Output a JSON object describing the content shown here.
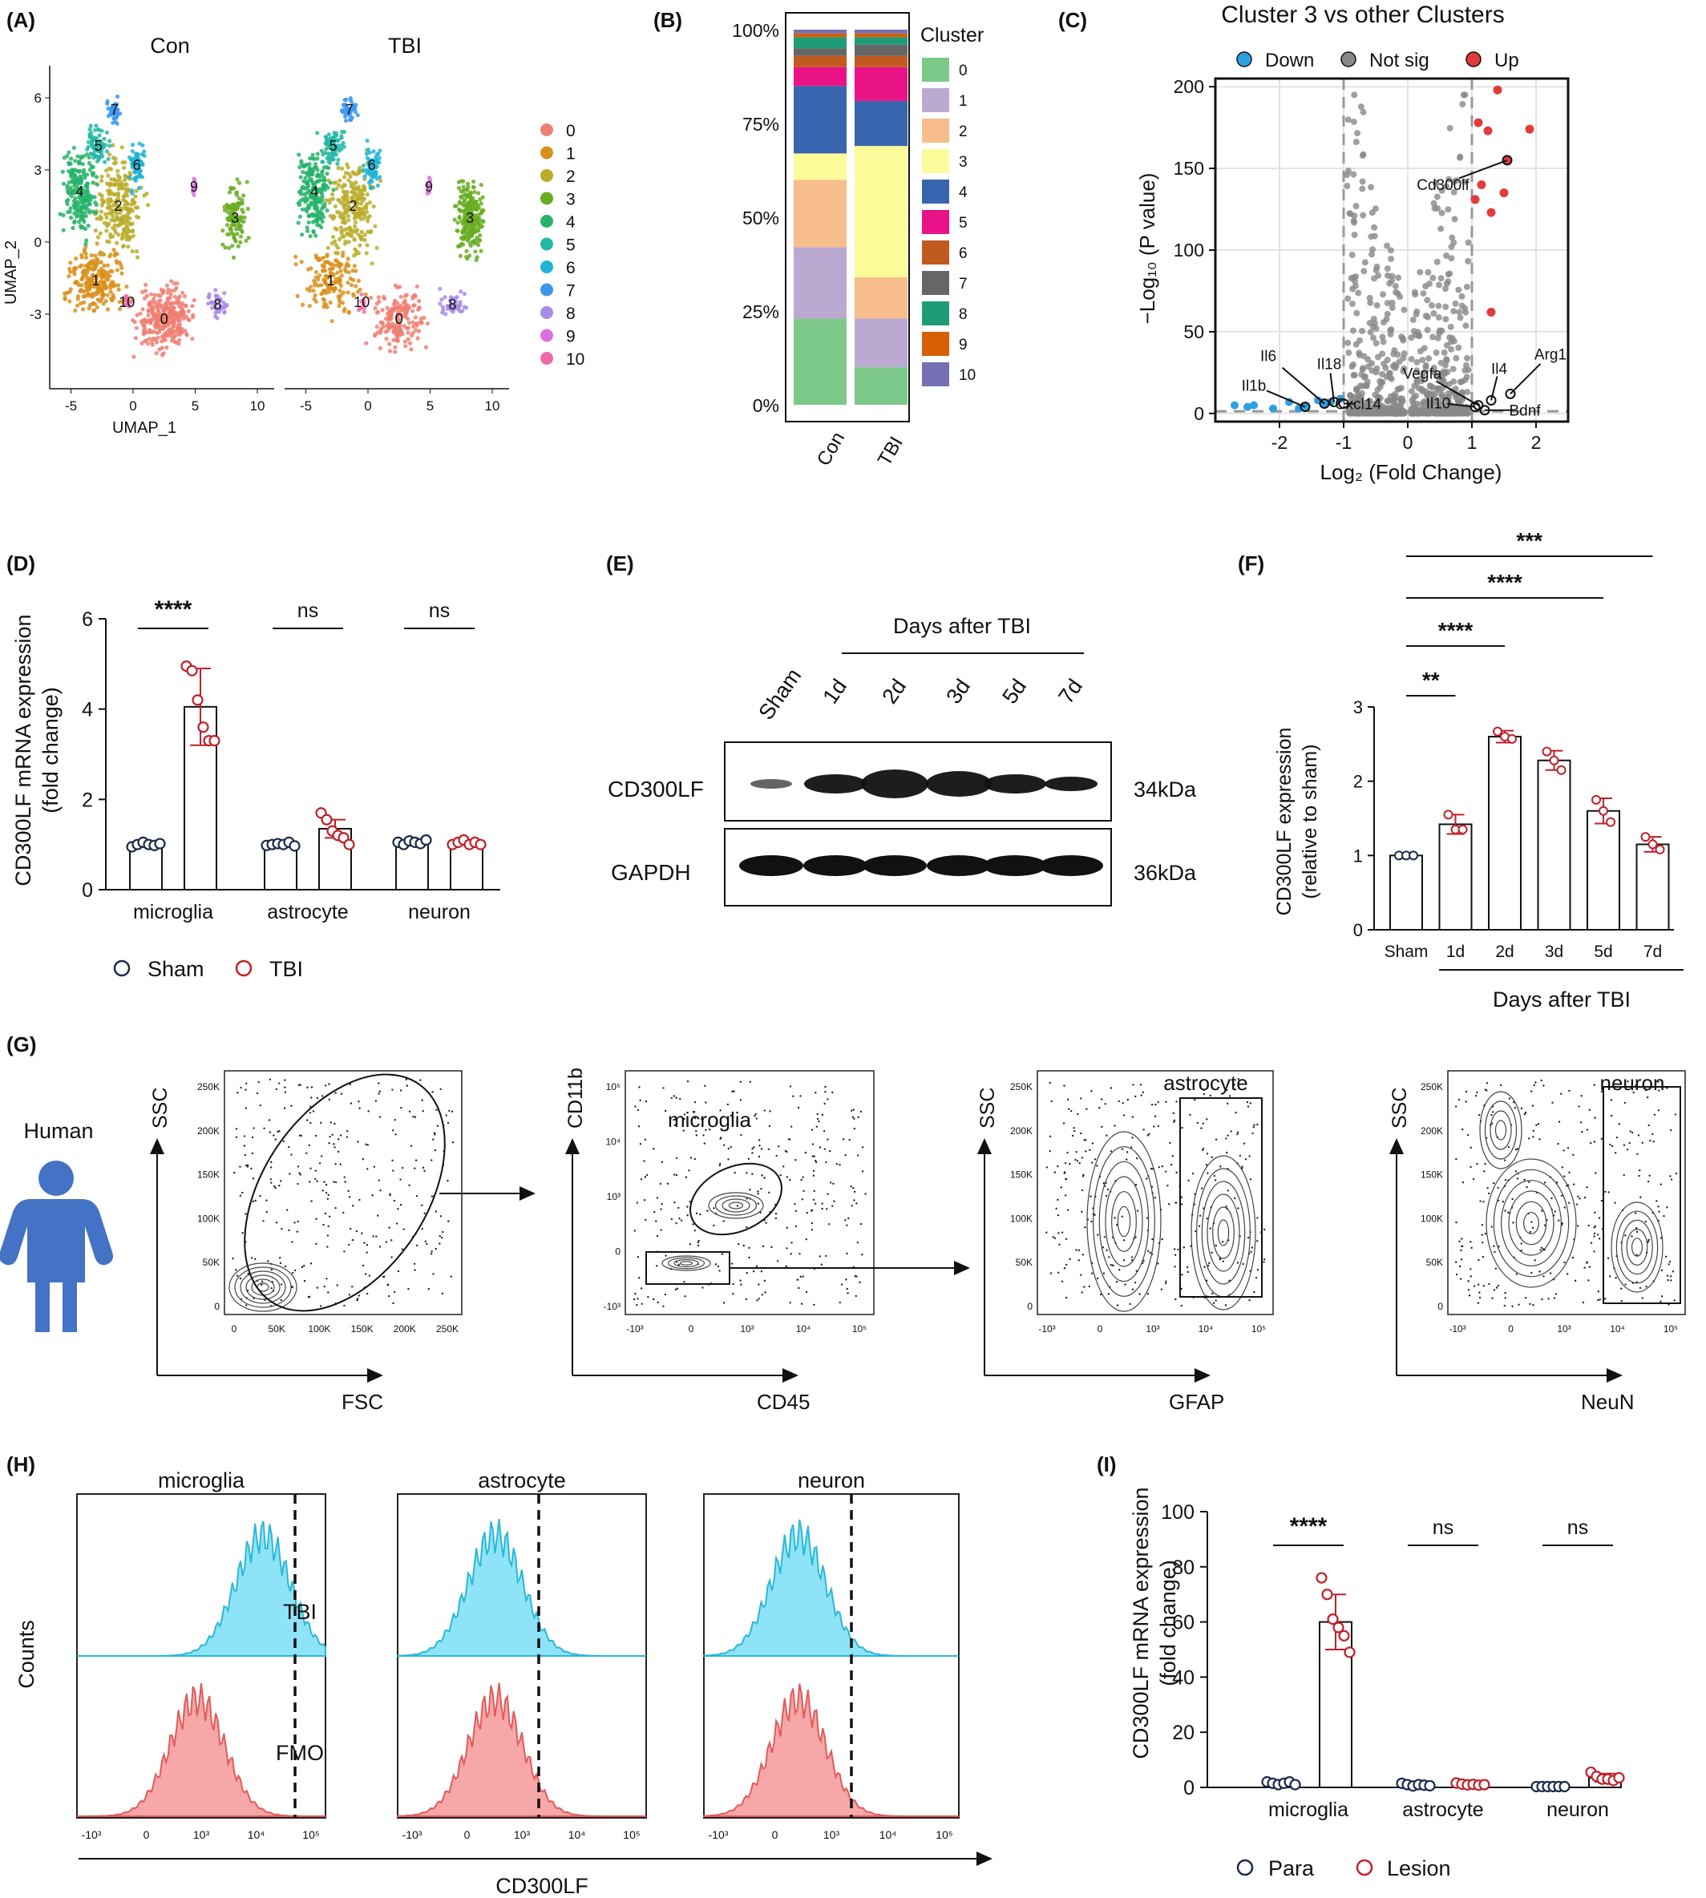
{
  "panels": {
    "A": {
      "label": "(A)",
      "groups": [
        "Con",
        "TBI"
      ],
      "xlabel": "UMAP_1",
      "ylabel": "UMAP_2",
      "xticks": [
        "-5",
        "0",
        "5",
        "10"
      ],
      "yticks": [
        "6",
        "3",
        "0",
        "-3"
      ],
      "clusters": [
        "0",
        "1",
        "2",
        "3",
        "4",
        "5",
        "6",
        "7",
        "8",
        "9",
        "10"
      ],
      "colors": [
        "#f07f73",
        "#d9901c",
        "#b9ad2a",
        "#6aad25",
        "#27b36a",
        "#24b7a4",
        "#1fb4d6",
        "#3d96ee",
        "#a88be8",
        "#dc6fe0",
        "#f06aa8"
      ]
    },
    "B": {
      "label": "(B)",
      "legend_title": "Cluster"
    },
    "C": {
      "label": "(C)",
      "title": "Cluster 3 vs other Clusters",
      "legend": [
        "Down",
        "Not sig",
        "Up"
      ],
      "xlabel": "Log₂ (Fold Change)",
      "ylabel": "−Log₁₀ (P value)",
      "genes": [
        "Cd300lf",
        "Il6",
        "Il18",
        "Il1b",
        "Cxcl14",
        "Vegfa",
        "Il10",
        "Il4",
        "Arg1",
        "Bdnf"
      ]
    },
    "D": {
      "label": "(D)",
      "ylabel": [
        "CD300LF mRNA expression",
        "(fold change)"
      ],
      "sig": [
        "****",
        "ns",
        "ns"
      ],
      "legend": [
        "Sham",
        "TBI"
      ]
    },
    "E": {
      "label": "(E)",
      "header": "Days after TBI",
      "lanes": [
        "Sham",
        "1d",
        "2d",
        "3d",
        "5d",
        "7d"
      ],
      "rows": [
        {
          "name": "CD300LF",
          "size": "34kDa"
        },
        {
          "name": "GAPDH",
          "size": "36kDa"
        }
      ]
    },
    "F": {
      "label": "(F)",
      "ylabel": [
        "CD300LF expression",
        "(relative to sham)"
      ],
      "xlabel": "Days after TBI",
      "sig": [
        "**",
        "****",
        "****",
        "***"
      ]
    },
    "G": {
      "label": "(G)",
      "subject": "Human",
      "plots": [
        {
          "x": "FSC",
          "y": "SSC",
          "gate": ""
        },
        {
          "x": "CD45",
          "y": "CD11b",
          "gate": "microglia"
        },
        {
          "x": "GFAP",
          "y": "SSC",
          "gate": "astrocyte"
        },
        {
          "x": "NeuN",
          "y": "SSC",
          "gate": "neuron"
        }
      ],
      "linear_ticks": [
        "0",
        "50K",
        "100K",
        "150K",
        "200K",
        "250K"
      ]
    },
    "H": {
      "label": "(H)",
      "cells": [
        "microglia",
        "astrocyte",
        "neuron"
      ],
      "conditions": [
        "TBI",
        "FMO"
      ],
      "ylabel": "Counts",
      "xlabel": "CD300LF"
    },
    "I": {
      "label": "(I)",
      "ylabel": [
        "CD300LF mRNA expression",
        "(fold change)"
      ],
      "sig": [
        "****",
        "ns",
        "ns"
      ],
      "legend": [
        "Para",
        "Lesion"
      ]
    }
  },
  "chart_data": [
    {
      "panel": "B",
      "type": "bar",
      "stacked": true,
      "categories": [
        "Con",
        "TBI"
      ],
      "series": [
        {
          "name": "0",
          "values": [
            0.23,
            0.1
          ]
        },
        {
          "name": "1",
          "values": [
            0.19,
            0.13
          ]
        },
        {
          "name": "2",
          "values": [
            0.18,
            0.11
          ]
        },
        {
          "name": "3",
          "values": [
            0.07,
            0.35
          ]
        },
        {
          "name": "4",
          "values": [
            0.18,
            0.12
          ]
        },
        {
          "name": "5",
          "values": [
            0.05,
            0.09
          ]
        },
        {
          "name": "6",
          "values": [
            0.03,
            0.03
          ]
        },
        {
          "name": "7",
          "values": [
            0.02,
            0.03
          ]
        },
        {
          "name": "8",
          "values": [
            0.03,
            0.02
          ]
        },
        {
          "name": "9",
          "values": [
            0.01,
            0.01
          ]
        },
        {
          "name": "10",
          "values": [
            0.01,
            0.01
          ]
        }
      ],
      "ylim": [
        0,
        1
      ],
      "yticks": [
        "0%",
        "25%",
        "50%",
        "75%",
        "100%"
      ],
      "colors": [
        "#7cc98a",
        "#bca9d2",
        "#f7bd8b",
        "#fcfb9a",
        "#3865ae",
        "#ea1287",
        "#c15a1e",
        "#666666",
        "#1e9b77",
        "#d75f06",
        "#7570b3"
      ]
    },
    {
      "panel": "C",
      "type": "scatter",
      "xlim": [
        -3,
        2.5
      ],
      "ylim": [
        -5,
        205
      ],
      "xticks": [
        "-2",
        "-1",
        "0",
        "1",
        "2"
      ],
      "yticks": [
        "0",
        "50",
        "100",
        "150",
        "200"
      ],
      "colors": {
        "down": "#2fa0e0",
        "ns": "#888888",
        "up": "#e23b3b"
      },
      "up_points": [
        [
          1.4,
          198
        ],
        [
          1.9,
          174
        ],
        [
          1.1,
          178
        ],
        [
          1.55,
          155
        ],
        [
          1.25,
          173
        ],
        [
          1.15,
          140
        ],
        [
          1.5,
          135
        ],
        [
          1.3,
          123
        ],
        [
          1.3,
          62
        ],
        [
          1.05,
          131
        ]
      ],
      "down_points": [
        [
          -2.7,
          5
        ],
        [
          -2.5,
          4
        ],
        [
          -2.4,
          5
        ],
        [
          -2.1,
          3
        ],
        [
          -1.85,
          7
        ],
        [
          -1.4,
          8
        ],
        [
          -1.3,
          6
        ],
        [
          -1.2,
          7
        ],
        [
          -1.05,
          9
        ],
        [
          -1.6,
          4
        ],
        [
          -1.7,
          3
        ]
      ],
      "labels": [
        {
          "text": "Cd300lf",
          "x": 1.55,
          "y": 155
        },
        {
          "text": "Il6",
          "x": -1.3,
          "y": 6
        },
        {
          "text": "Il18",
          "x": -1.15,
          "y": 7
        },
        {
          "text": "Il1b",
          "x": -1.6,
          "y": 4
        },
        {
          "text": "Cxcl14",
          "x": -1.0,
          "y": 6
        },
        {
          "text": "Vegfa",
          "x": 1.1,
          "y": 5
        },
        {
          "text": "Il10",
          "x": 1.05,
          "y": 4
        },
        {
          "text": "Il4",
          "x": 1.3,
          "y": 8
        },
        {
          "text": "Arg1",
          "x": 1.6,
          "y": 12
        },
        {
          "text": "Bdnf",
          "x": 1.2,
          "y": 2
        }
      ]
    },
    {
      "panel": "D",
      "type": "bar",
      "categories": [
        "microglia",
        "astrocyte",
        "neuron"
      ],
      "series": [
        {
          "name": "Sham",
          "values": [
            1.0,
            1.0,
            1.05
          ]
        },
        {
          "name": "TBI",
          "values": [
            4.05,
            1.35,
            1.05
          ]
        }
      ],
      "errors": [
        [
          0.05,
          0.05,
          0.05
        ],
        [
          0.85,
          0.2,
          0.06
        ]
      ],
      "points": [
        [
          [
            0.95,
            1.0,
            1.05,
            1.0,
            0.98,
            1.02
          ],
          [
            0.98,
            1.0,
            1.02,
            1.0,
            1.05,
            0.97
          ],
          [
            1.05,
            1.0,
            1.08,
            1.05,
            1.02,
            1.1
          ]
        ],
        [
          [
            4.95,
            4.85,
            4.2,
            3.6,
            3.3,
            3.3
          ],
          [
            1.7,
            1.55,
            1.3,
            1.2,
            1.15,
            1.0
          ],
          [
            1.0,
            1.05,
            1.1,
            1.0,
            1.05,
            1.0
          ]
        ]
      ],
      "ylim": [
        0,
        6
      ],
      "yticks": [
        "0",
        "2",
        "4",
        "6"
      ]
    },
    {
      "panel": "F",
      "type": "bar",
      "categories": [
        "Sham",
        "1d",
        "2d",
        "3d",
        "5d",
        "7d"
      ],
      "values": [
        1.0,
        1.42,
        2.6,
        2.28,
        1.6,
        1.15
      ],
      "errors": [
        0.02,
        0.13,
        0.08,
        0.13,
        0.17,
        0.1
      ],
      "points": [
        [
          1.0,
          1.0,
          1.0
        ],
        [
          1.55,
          1.35,
          1.35
        ],
        [
          2.67,
          2.6,
          2.57
        ],
        [
          2.4,
          2.28,
          2.15
        ],
        [
          1.75,
          1.6,
          1.45
        ],
        [
          1.25,
          1.15,
          1.08
        ]
      ],
      "ylim": [
        0,
        3
      ],
      "yticks": [
        "0",
        "1",
        "2",
        "3"
      ]
    },
    {
      "panel": "I",
      "type": "bar",
      "categories": [
        "microglia",
        "astrocyte",
        "neuron"
      ],
      "series": [
        {
          "name": "Para",
          "values": [
            1.5,
            1.0,
            0.5
          ]
        },
        {
          "name": "Lesion",
          "values": [
            60,
            1.0,
            3.5
          ]
        }
      ],
      "errors": [
        [
          0.5,
          0.5,
          0.3
        ],
        [
          10,
          0.5,
          1.5
        ]
      ],
      "points": [
        [
          [
            2,
            1.5,
            1,
            1.5,
            2,
            1
          ],
          [
            1.5,
            1,
            0.5,
            1,
            0.8,
            0.6
          ],
          [
            0.3,
            0.3,
            0.3,
            0.3,
            0.3,
            0.3
          ]
        ],
        [
          [
            76,
            70,
            61,
            58,
            55,
            49
          ],
          [
            1.6,
            1.2,
            0.9,
            1.1,
            0.8,
            1.0
          ],
          [
            5.5,
            4,
            3,
            3,
            2.5,
            3.5
          ]
        ]
      ],
      "ylim": [
        0,
        100
      ],
      "yticks": [
        "0",
        "20",
        "40",
        "60",
        "80",
        "100"
      ]
    }
  ]
}
